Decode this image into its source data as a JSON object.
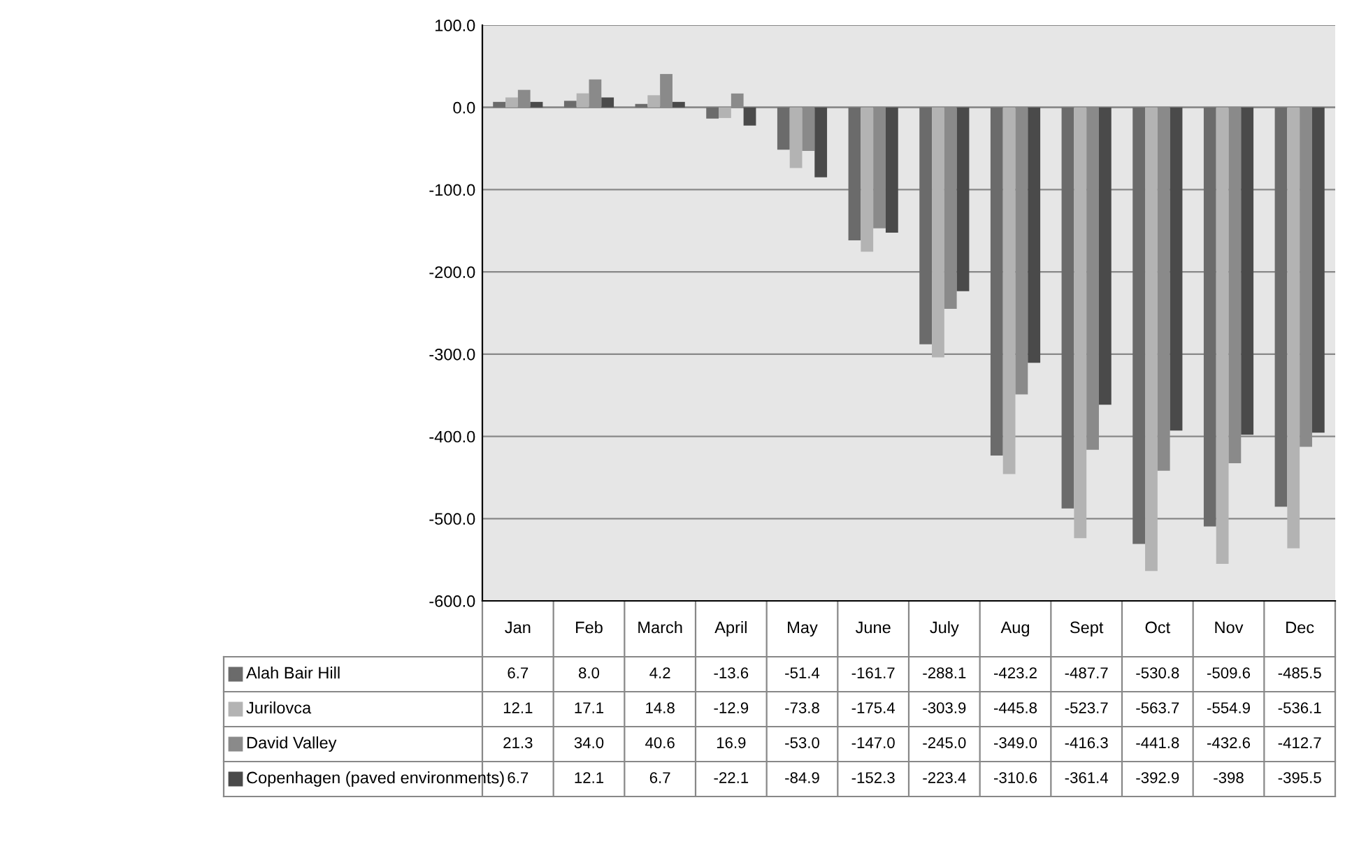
{
  "chart_data": {
    "type": "bar",
    "categories": [
      "Jan",
      "Feb",
      "March",
      "April",
      "May",
      "June",
      "July",
      "Aug",
      "Sept",
      "Oct",
      "Nov",
      "Dec"
    ],
    "ylim": [
      -600,
      100
    ],
    "yticks": [
      {
        "value": -600,
        "label": "-600.0"
      },
      {
        "value": -500,
        "label": "-500.0"
      },
      {
        "value": -400,
        "label": "-400.0"
      },
      {
        "value": -300,
        "label": "-300.0"
      },
      {
        "value": -200,
        "label": "-200.0"
      },
      {
        "value": -100,
        "label": "-100.0"
      },
      {
        "value": 0,
        "label": "0.0"
      },
      {
        "value": 100,
        "label": "100.0"
      }
    ],
    "grid": "y",
    "legend": "left",
    "series": [
      {
        "name": "Alah Bair Hill",
        "color": "#6b6b6b",
        "values": [
          6.7,
          8.0,
          4.2,
          -13.6,
          -51.4,
          -161.7,
          -288.1,
          -423.2,
          -487.7,
          -530.8,
          -509.6,
          -485.5
        ],
        "value_labels": [
          "6.7",
          "8.0",
          "4.2",
          "-13.6",
          "-51.4",
          "-161.7",
          "-288.1",
          "-423.2",
          "-487.7",
          "-530.8",
          "-509.6",
          "-485.5"
        ]
      },
      {
        "name": "Jurilovca",
        "color": "#b3b3b3",
        "values": [
          12.1,
          17.1,
          14.8,
          -12.9,
          -73.8,
          -175.4,
          -303.9,
          -445.8,
          -523.7,
          -563.7,
          -554.9,
          -536.1
        ],
        "value_labels": [
          "12.1",
          "17.1",
          "14.8",
          "-12.9",
          "-73.8",
          "-175.4",
          "-303.9",
          "-445.8",
          "-523.7",
          "-563.7",
          "-554.9",
          "-536.1"
        ]
      },
      {
        "name": "David Valley",
        "color": "#8a8a8a",
        "values": [
          21.3,
          34.0,
          40.6,
          16.9,
          -53.0,
          -147.0,
          -245.0,
          -349.0,
          -416.3,
          -441.8,
          -432.6,
          -412.7
        ],
        "value_labels": [
          "21.3",
          "34.0",
          "40.6",
          "16.9",
          "-53.0",
          "-147.0",
          "-245.0",
          "-349.0",
          "-416.3",
          "-441.8",
          "-432.6",
          "-412.7"
        ]
      },
      {
        "name": "Copenhagen (paved environments)",
        "color": "#4a4a4a",
        "values": [
          6.7,
          12.1,
          6.7,
          -22.1,
          -84.9,
          -152.3,
          -223.4,
          -310.6,
          -361.4,
          -392.9,
          -398,
          -395.5
        ],
        "value_labels": [
          "6.7",
          "12.1",
          "6.7",
          "-22.1",
          "-84.9",
          "-152.3",
          "-223.4",
          "-310.6",
          "-361.4",
          "-392.9",
          "-398",
          "-395.5"
        ]
      }
    ]
  }
}
